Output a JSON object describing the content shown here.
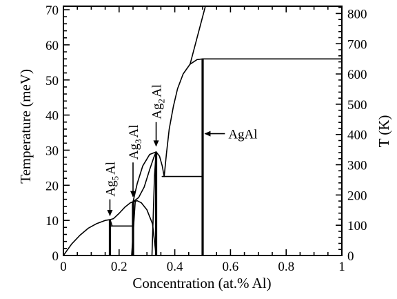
{
  "chart_data": {
    "type": "line",
    "title": "",
    "xlabel": "Concentration (at.% Al)",
    "ylabel": "Temperature (meV)",
    "y2label": "T (K)",
    "xlim": [
      0,
      1
    ],
    "ylim": [
      0,
      71
    ],
    "y2lim": [
      0,
      823.9
    ],
    "grid": false,
    "x_ticks": [
      "0",
      "0.2",
      "0.4",
      "0.6",
      "0.8",
      "1"
    ],
    "x_tick_values": [
      0,
      0.2,
      0.4,
      0.6,
      0.8,
      1
    ],
    "y_ticks": [
      "0",
      "10",
      "20",
      "30",
      "40",
      "50",
      "60",
      "70"
    ],
    "y_tick_values": [
      0,
      10,
      20,
      30,
      40,
      50,
      60,
      70
    ],
    "y2_ticks": [
      "0",
      "100",
      "200",
      "300",
      "400",
      "500",
      "600",
      "700",
      "800"
    ],
    "y2_tick_values": [
      0,
      100,
      200,
      300,
      400,
      500,
      600,
      700,
      800
    ],
    "series": [
      {
        "style": "thin",
        "x": [
          0,
          0.03,
          0.06,
          0.09,
          0.12,
          0.15,
          0.167
        ],
        "y": [
          0,
          3.3,
          5.8,
          7.8,
          9.1,
          10.0,
          10.2
        ]
      },
      {
        "style": "thin",
        "x": [
          0.167,
          0.18,
          0.2,
          0.22,
          0.24,
          0.25
        ],
        "y": [
          10.2,
          10.5,
          12.0,
          13.7,
          15.0,
          15.3
        ]
      },
      {
        "style": "thin",
        "x": [
          0.167,
          0.171,
          0.175
        ],
        "y": [
          10.2,
          9.4,
          8.4
        ]
      },
      {
        "style": "thin",
        "x": [
          0.167,
          0.25
        ],
        "y": [
          8.4,
          8.4
        ]
      },
      {
        "style": "thin",
        "x": [
          0.25,
          0.27,
          0.29,
          0.31,
          0.325,
          0.333
        ],
        "y": [
          15.3,
          16.5,
          19.5,
          24.5,
          28.0,
          29.5
        ]
      },
      {
        "style": "thin",
        "x": [
          0.25,
          0.265,
          0.28,
          0.3,
          0.32,
          0.333
        ],
        "y": [
          15.3,
          15.6,
          15.0,
          13.0,
          9.0,
          0
        ]
      },
      {
        "style": "thin",
        "x": [
          0.25,
          0.265,
          0.285,
          0.31,
          0.333
        ],
        "y": [
          15.3,
          20.5,
          25.5,
          28.8,
          29.5
        ]
      },
      {
        "style": "thin",
        "x": [
          0.245,
          0.258
        ],
        "y": [
          0,
          15.3
        ]
      },
      {
        "style": "thin",
        "x": [
          0.318,
          0.327,
          0.333
        ],
        "y": [
          0,
          22.5,
          29.5
        ]
      },
      {
        "style": "thin",
        "x": [
          0.333,
          0.345,
          0.355,
          0.362
        ],
        "y": [
          29.5,
          28.3,
          25.5,
          22.5
        ]
      },
      {
        "style": "thin",
        "x": [
          0.355,
          0.5
        ],
        "y": [
          22.5,
          22.5
        ]
      },
      {
        "style": "thin",
        "x": [
          0.362,
          0.37,
          0.38,
          0.395,
          0.41,
          0.43,
          0.455,
          0.48,
          0.5
        ],
        "y": [
          22.5,
          29.0,
          36.0,
          42.5,
          47.5,
          51.7,
          54.5,
          55.8,
          56.0
        ]
      },
      {
        "style": "thin",
        "x": [
          0.5,
          1.0
        ],
        "y": [
          56.0,
          56.0
        ]
      },
      {
        "style": "thin",
        "x": [
          0.455,
          0.51
        ],
        "y": [
          54.5,
          71
        ]
      },
      {
        "style": "thick",
        "x": [
          0.167,
          0.167
        ],
        "y": [
          0,
          10.2
        ]
      },
      {
        "style": "thick",
        "x": [
          0.25,
          0.25
        ],
        "y": [
          0,
          15.3
        ]
      },
      {
        "style": "thick",
        "x": [
          0.333,
          0.333
        ],
        "y": [
          0,
          29.5
        ]
      },
      {
        "style": "thick",
        "x": [
          0.5,
          0.5
        ],
        "y": [
          0,
          56.0
        ]
      }
    ],
    "annotations": [
      {
        "base": "Ag",
        "sub": "5",
        "tail": "Al",
        "orientation": "vertical",
        "arrow_x": 0.167,
        "arrow_from": 16.0,
        "arrow_to": 11.2
      },
      {
        "base": "Ag",
        "sub": "3",
        "tail": "Al",
        "orientation": "vertical",
        "arrow_x": 0.25,
        "arrow_from": 26.5,
        "arrow_to": 16.6
      },
      {
        "base": "Ag",
        "sub": "2",
        "tail": "Al",
        "orientation": "vertical",
        "arrow_x": 0.333,
        "arrow_from": 38.0,
        "arrow_to": 31.0
      },
      {
        "base": "",
        "sub": "",
        "tail": "AgAl",
        "orientation": "horizontal",
        "arrow_y": 34.7,
        "arrow_from": 0.58,
        "arrow_to": 0.506
      }
    ]
  }
}
